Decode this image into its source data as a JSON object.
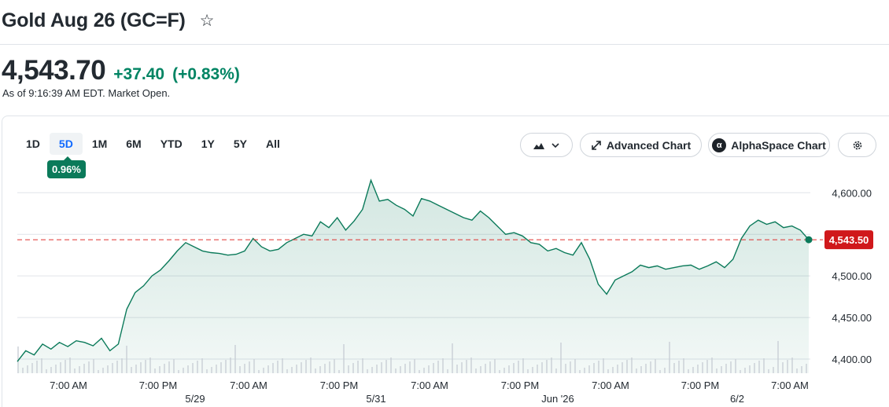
{
  "header": {
    "title": "Gold Aug 26 (GC=F)",
    "watchlist_icon": "star-outline-icon"
  },
  "quote": {
    "price": "4,543.70",
    "change": "+37.40",
    "change_percent": "(+0.83%)",
    "as_of": "As of 9:16:39 AM EDT. Market Open.",
    "up_color": "#008463"
  },
  "range_tabs": [
    "1D",
    "5D",
    "1M",
    "6M",
    "YTD",
    "1Y",
    "5Y",
    "All"
  ],
  "active_range": "5D",
  "range_change_badge": "0.96%",
  "toolbar": {
    "chart_type_icon": "mountain-chart-icon",
    "chevron_icon": "chevron-down-icon",
    "advanced_chart_icon": "expand-arrows-icon",
    "advanced_chart_label": "Advanced Chart",
    "alphaspace_logo_letter": "α",
    "alphaspace_label": "AlphaSpace Chart",
    "settings_icon": "gear-icon"
  },
  "chart_data": {
    "type": "area",
    "title": "",
    "ylim": [
      4383,
      4622
    ],
    "y_ticks": [
      "4,600.00",
      "4,550.00",
      "4,500.00",
      "4,450.00",
      "4,400.00"
    ],
    "y_tick_values": [
      4600,
      4550,
      4500,
      4450,
      4400
    ],
    "x_time_labels": [
      "7:00 AM",
      "7:00 PM",
      "7:00 AM",
      "7:00 PM",
      "7:00 AM",
      "7:00 PM",
      "7:00 AM",
      "7:00 PM",
      "7:00 AM"
    ],
    "x_date_labels": [
      "5/29",
      "5/31",
      "Jun '26",
      "6/2"
    ],
    "current_price_label": "4,543.50",
    "current_price": 4543.5,
    "line_color": "#0b7a5a",
    "reference_line_color": "#e0312f",
    "series": [
      {
        "values": [
          4397,
          4410,
          4405,
          4418,
          4412,
          4420,
          4415,
          4422,
          4420,
          4416,
          4425,
          4410,
          4418,
          4460,
          4480,
          4488,
          4500,
          4507,
          4518,
          4530,
          4540,
          4535,
          4530,
          4528,
          4527,
          4525,
          4526,
          4530,
          4545,
          4535,
          4530,
          4532,
          4540,
          4545,
          4550,
          4548,
          4565,
          4558,
          4570,
          4555,
          4566,
          4580,
          4615,
          4590,
          4592,
          4585,
          4580,
          4572,
          4593,
          4590,
          4585,
          4580,
          4575,
          4570,
          4567,
          4578,
          4570,
          4560,
          4550,
          4552,
          4548,
          4540,
          4538,
          4530,
          4533,
          4528,
          4525,
          4540,
          4520,
          4490,
          4478,
          4495,
          4500,
          4505,
          4513,
          4510,
          4512,
          4508,
          4510,
          4512,
          4513,
          4508,
          4512,
          4517,
          4510,
          4520,
          4545,
          4560,
          4567,
          4562,
          4565,
          4558,
          4560,
          4555,
          4543.5
        ]
      }
    ],
    "volume_note": "volume bars along bottom"
  }
}
